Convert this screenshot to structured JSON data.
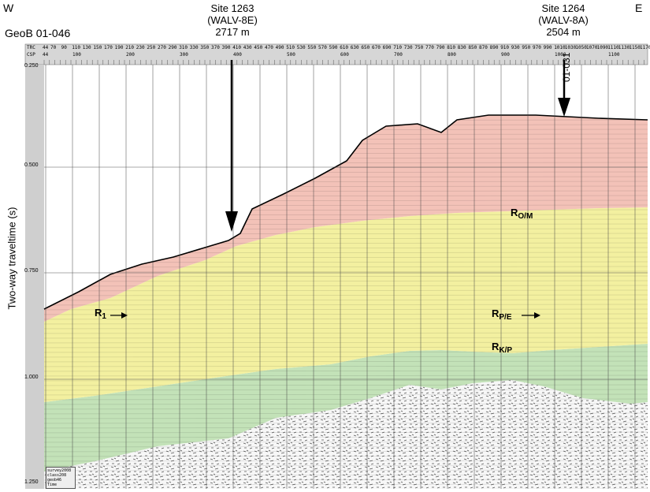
{
  "header": {
    "west": "W",
    "east": "E",
    "profile": "GeoB 01-046",
    "site_a": {
      "name": "Site 1263",
      "hole": "(WALV-8E)",
      "depth": "2717 m"
    },
    "site_b": {
      "name": "Site 1264",
      "hole": "(WALV-8A)",
      "depth": "2504 m"
    },
    "crossing_line": "01-031"
  },
  "yaxis": {
    "label": "Two-way traveltime (s)",
    "ticks": [
      "0.250",
      "0.500",
      "0.750",
      "1.000",
      "1.250"
    ]
  },
  "trace_header": {
    "trc": "TRC",
    "csp": "CSP",
    "trc_start": "44",
    "csp_start": "44"
  },
  "trc_numbers": [
    "70",
    "90",
    "110",
    "130",
    "150",
    "170",
    "190",
    "210",
    "230",
    "250",
    "270",
    "290",
    "310",
    "330",
    "350",
    "370",
    "390",
    "410",
    "430",
    "450",
    "470",
    "490",
    "510",
    "530",
    "550",
    "570",
    "590",
    "610",
    "630",
    "650",
    "670",
    "690",
    "710",
    "730",
    "750",
    "770",
    "790",
    "810",
    "830",
    "850",
    "870",
    "890",
    "910",
    "930",
    "950",
    "970",
    "990",
    "1010",
    "1030",
    "1050",
    "1070",
    "1090",
    "1110",
    "1130",
    "1150",
    "1170"
  ],
  "csp_numbers": [
    "100",
    "200",
    "300",
    "400",
    "500",
    "600",
    "700",
    "800",
    "900",
    "1000",
    "1100"
  ],
  "reflectors": {
    "r1": {
      "base": "R",
      "sub": "1"
    },
    "rom": {
      "base": "R",
      "sub": "O/M"
    },
    "rpe": {
      "base": "R",
      "sub": "P/E"
    },
    "rkp": {
      "base": "R",
      "sub": "K/P"
    }
  },
  "legend": {
    "lines": [
      "survey2008",
      "class208",
      "geob46",
      "Time"
    ]
  },
  "colors": {
    "pink": "#f3c2b8",
    "yellow": "#f3f0a0",
    "green": "#c3e2b8",
    "basement": "#f5f5f5",
    "axis_bar": "#cfcfcf"
  }
}
